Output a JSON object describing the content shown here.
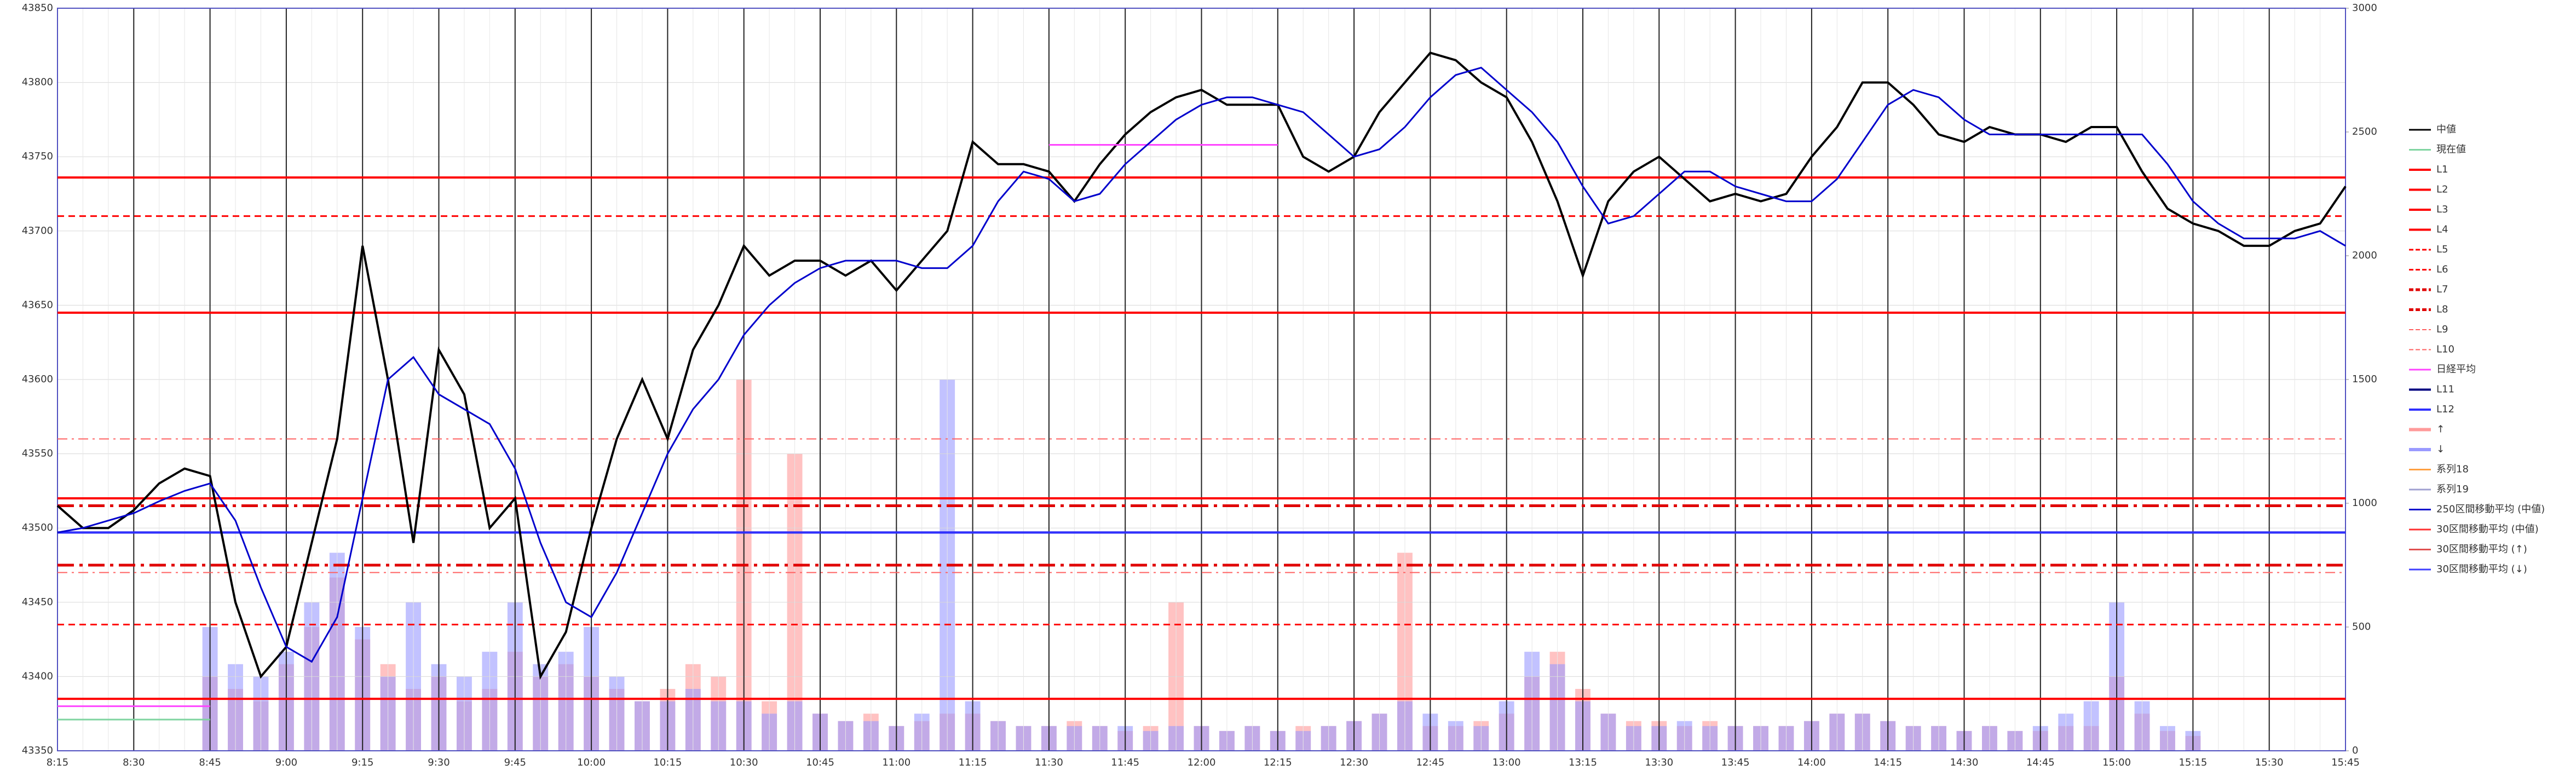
{
  "chart_data": {
    "type": "line",
    "x": [
      "8:15",
      "8:20",
      "8:25",
      "8:30",
      "8:35",
      "8:40",
      "8:45",
      "8:50",
      "8:55",
      "9:00",
      "9:05",
      "9:10",
      "9:15",
      "9:20",
      "9:25",
      "9:30",
      "9:35",
      "9:40",
      "9:45",
      "9:50",
      "9:55",
      "10:00",
      "10:05",
      "10:10",
      "10:15",
      "10:20",
      "10:25",
      "10:30",
      "10:35",
      "10:40",
      "10:45",
      "10:50",
      "10:55",
      "11:00",
      "11:05",
      "11:10",
      "11:15",
      "11:20",
      "11:25",
      "11:30",
      "11:35",
      "11:40",
      "11:45",
      "11:50",
      "11:55",
      "12:00",
      "12:05",
      "12:10",
      "12:15",
      "12:20",
      "12:25",
      "12:30",
      "12:35",
      "12:40",
      "12:45",
      "12:50",
      "12:55",
      "13:00",
      "13:05",
      "13:10",
      "13:15",
      "13:20",
      "13:25",
      "13:30",
      "13:35",
      "13:40",
      "13:45",
      "13:50",
      "13:55",
      "14:00",
      "14:05",
      "14:10",
      "14:15",
      "14:20",
      "14:25",
      "14:30",
      "14:35",
      "14:40",
      "14:45",
      "14:50",
      "14:55",
      "15:00",
      "15:05",
      "15:10",
      "15:15",
      "15:20",
      "15:25",
      "15:30",
      "15:35",
      "15:40",
      "15:45"
    ],
    "ylim": [
      43350,
      43850
    ],
    "yticks": [
      43350,
      43400,
      43450,
      43500,
      43550,
      43600,
      43650,
      43700,
      43750,
      43800,
      43850
    ],
    "y2lim": [
      0,
      3000
    ],
    "y2ticks": [
      0,
      500,
      1000,
      1500,
      2000,
      2500,
      3000
    ],
    "grid": true,
    "legend": "right",
    "series": [
      {
        "name": "中値",
        "color": "#000000",
        "kind": "line",
        "values": [
          43515,
          43500,
          43500,
          43512,
          43530,
          43540,
          43535,
          43450,
          43400,
          43420,
          43490,
          43560,
          43690,
          43600,
          43490,
          43620,
          43590,
          43500,
          43520,
          43400,
          43430,
          43500,
          43560,
          43600,
          43560,
          43620,
          43650,
          43690,
          43670,
          43680,
          43680,
          43670,
          43680,
          43660,
          43680,
          43700,
          43760,
          43745,
          43745,
          43740,
          43720,
          43745,
          43765,
          43780,
          43790,
          43795,
          43785,
          43785,
          43785,
          43750,
          43740,
          43750,
          43780,
          43800,
          43820,
          43815,
          43800,
          43790,
          43760,
          43720,
          43670,
          43720,
          43740,
          43750,
          43735,
          43720,
          43725,
          43720,
          43725,
          43750,
          43770,
          43800,
          43800,
          43785,
          43765,
          43760,
          43770,
          43765,
          43765,
          43760,
          43770,
          43770,
          43740,
          43715,
          43705,
          43700,
          43690,
          43690,
          43700,
          43705,
          43730
        ]
      },
      {
        "name": "現在値",
        "color": "#7fd4a0",
        "kind": "line",
        "values": [
          43371,
          43371,
          43371,
          43371,
          43371,
          43371,
          43371,
          null,
          null,
          null,
          null,
          null,
          null,
          null,
          null,
          null,
          null,
          null,
          null,
          null,
          null,
          null,
          null,
          null,
          null,
          null,
          null,
          null,
          null,
          null,
          null,
          null,
          null,
          null,
          null,
          null,
          null,
          null,
          null,
          null,
          null,
          null,
          null,
          null,
          null,
          null,
          null,
          null,
          null,
          null,
          null,
          null,
          null,
          null,
          null,
          null,
          null,
          null,
          null,
          null,
          null,
          null,
          null,
          null,
          null,
          null,
          null,
          null,
          null,
          null,
          null,
          null,
          null,
          null,
          null,
          null,
          null,
          null,
          null,
          null,
          null,
          null,
          null,
          null,
          null,
          null,
          null,
          null,
          null,
          null,
          null
        ]
      },
      {
        "name": "L1",
        "color": "#ff0000",
        "kind": "level",
        "level": 43736,
        "dash": "solid"
      },
      {
        "name": "L2",
        "color": "#ff0000",
        "kind": "level",
        "level": 43645,
        "dash": "solid"
      },
      {
        "name": "L3",
        "color": "#ff0000",
        "kind": "level",
        "level": 43520,
        "dash": "solid"
      },
      {
        "name": "L4",
        "color": "#ff0000",
        "kind": "level",
        "level": 43385,
        "dash": "solid"
      },
      {
        "name": "L5",
        "color": "#ff0000",
        "kind": "level",
        "level": 43710,
        "dash": "dash"
      },
      {
        "name": "L6",
        "color": "#ff0000",
        "kind": "level",
        "level": 43435,
        "dash": "dash"
      },
      {
        "name": "L7",
        "color": "#e00000",
        "kind": "level",
        "level": 43515,
        "dash": "dashdot-bold"
      },
      {
        "name": "L8",
        "color": "#e00000",
        "kind": "level",
        "level": 43475,
        "dash": "dashdot-bold"
      },
      {
        "name": "L9",
        "color": "#ff6060",
        "kind": "level",
        "level": 43560,
        "dash": "dashdot"
      },
      {
        "name": "L10",
        "color": "#ff6060",
        "kind": "level",
        "level": 43470,
        "dash": "dashdot"
      },
      {
        "name": "日経平均",
        "color": "#ff44ff",
        "kind": "line",
        "values": [
          43380,
          43380,
          43380,
          43380,
          43380,
          43380,
          43380,
          null,
          null,
          null,
          null,
          null,
          null,
          null,
          null,
          null,
          null,
          null,
          null,
          null,
          null,
          null,
          null,
          null,
          null,
          null,
          null,
          null,
          null,
          null,
          null,
          null,
          null,
          null,
          null,
          null,
          null,
          null,
          null,
          43758,
          43758,
          43758,
          43758,
          43758,
          43758,
          43758,
          43758,
          43758,
          43758,
          null,
          null,
          null,
          null,
          null,
          null,
          null,
          null,
          null,
          null,
          null,
          null,
          null,
          null,
          null,
          null,
          null,
          null,
          null,
          null,
          null,
          null,
          null,
          null,
          null,
          null,
          null,
          null,
          null,
          null,
          null,
          null,
          null,
          null,
          null,
          null,
          null,
          null,
          null,
          null,
          null,
          null
        ]
      },
      {
        "name": "L11",
        "color": "#000080",
        "kind": "level",
        "level": 43497,
        "dash": "solid"
      },
      {
        "name": "L12",
        "color": "#3030ff",
        "kind": "level",
        "level": 43497,
        "dash": "solid"
      },
      {
        "name": "↑",
        "color": "#ff9a9a",
        "kind": "bar",
        "axis": "y2",
        "values": [
          0,
          0,
          0,
          0,
          0,
          0,
          300,
          250,
          200,
          350,
          500,
          700,
          450,
          350,
          250,
          300,
          200,
          250,
          400,
          300,
          350,
          300,
          250,
          200,
          250,
          350,
          300,
          1500,
          200,
          1200,
          150,
          120,
          150,
          100,
          120,
          150,
          150,
          120,
          100,
          100,
          120,
          100,
          80,
          100,
          600,
          100,
          80,
          100,
          80,
          100,
          100,
          120,
          150,
          800,
          100,
          100,
          120,
          150,
          300,
          400,
          250,
          150,
          120,
          120,
          100,
          120,
          100,
          100,
          100,
          120,
          150,
          150,
          120,
          100,
          100,
          80,
          100,
          80,
          80,
          100,
          100,
          300,
          150,
          80,
          60,
          0,
          0,
          0,
          0,
          0,
          0
        ]
      },
      {
        "name": "↓",
        "color": "#9a9aff",
        "kind": "bar",
        "axis": "y2",
        "values": [
          0,
          0,
          0,
          0,
          0,
          0,
          500,
          350,
          300,
          400,
          600,
          800,
          500,
          300,
          600,
          350,
          300,
          400,
          600,
          350,
          400,
          500,
          300,
          200,
          200,
          250,
          200,
          200,
          150,
          200,
          150,
          120,
          120,
          100,
          150,
          1500,
          200,
          120,
          100,
          100,
          100,
          100,
          100,
          80,
          100,
          100,
          80,
          100,
          80,
          80,
          100,
          120,
          150,
          200,
          150,
          120,
          100,
          200,
          400,
          350,
          200,
          150,
          100,
          100,
          120,
          100,
          100,
          100,
          100,
          120,
          150,
          150,
          120,
          100,
          100,
          80,
          100,
          80,
          100,
          150,
          200,
          600,
          200,
          100,
          80,
          0,
          0,
          0,
          0,
          0,
          0
        ]
      },
      {
        "name": "系列18",
        "color": "#ffa040",
        "kind": "legend"
      },
      {
        "name": "系列19",
        "color": "#a0a0d0",
        "kind": "legend"
      },
      {
        "name": "250区間移動平均 (中値)",
        "color": "#0000cc",
        "kind": "line",
        "values": [
          43497,
          43500,
          43505,
          43510,
          43518,
          43525,
          43530,
          43505,
          43460,
          43420,
          43410,
          43440,
          43520,
          43600,
          43615,
          43590,
          43580,
          43570,
          43540,
          43490,
          43450,
          43440,
          43470,
          43510,
          43550,
          43580,
          43600,
          43630,
          43650,
          43665,
          43675,
          43680,
          43680,
          43680,
          43675,
          43675,
          43690,
          43720,
          43740,
          43735,
          43720,
          43725,
          43745,
          43760,
          43775,
          43785,
          43790,
          43790,
          43785,
          43780,
          43765,
          43750,
          43755,
          43770,
          43790,
          43805,
          43810,
          43795,
          43780,
          43760,
          43730,
          43705,
          43710,
          43725,
          43740,
          43740,
          43730,
          43725,
          43720,
          43720,
          43735,
          43760,
          43785,
          43795,
          43790,
          43775,
          43765,
          43765,
          43765,
          43765,
          43765,
          43765,
          43765,
          43745,
          43720,
          43705,
          43695,
          43695,
          43695,
          43700,
          43690
        ]
      },
      {
        "name": "30区間移動平均 (中値)",
        "color": "#ff3030",
        "kind": "legend"
      },
      {
        "name": "30区間移動平均 (↑)",
        "color": "#e05050",
        "kind": "legend"
      },
      {
        "name": "30区間移動平均 (↓)",
        "color": "#4040ff",
        "kind": "legend"
      }
    ]
  }
}
